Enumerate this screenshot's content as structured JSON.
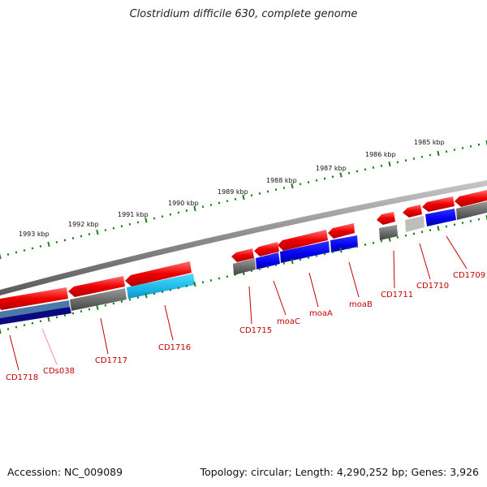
{
  "title": "Clostridium difficile 630, complete genome",
  "footer": {
    "accession": "Accession: NC_009089",
    "summary": "Topology: circular; Length: 4,290,252 bp; Genes: 3,926"
  },
  "colors": {
    "red": "#ee0000",
    "blue": "#0000ee",
    "cyan": "#1cb8e8",
    "navy": "#0a0a80",
    "steel": "#4a78a8",
    "gray": "#6a6a6a",
    "lightgray": "#bdbdbd",
    "backbone": "#8c8c8c",
    "ticks": "#1e7d1e",
    "label": "#c40000",
    "pink": "#f090b8"
  },
  "kbp_labels": [
    {
      "text": "1985 kbp",
      "kbp": 1985
    },
    {
      "text": "1986 kbp",
      "kbp": 1986
    },
    {
      "text": "1987 kbp",
      "kbp": 1987
    },
    {
      "text": "1988 kbp",
      "kbp": 1988
    },
    {
      "text": "1989 kbp",
      "kbp": 1989
    },
    {
      "text": "1990 kbp",
      "kbp": 1990
    },
    {
      "text": "1991 kbp",
      "kbp": 1991
    },
    {
      "text": "1992 kbp",
      "kbp": 1992
    },
    {
      "text": "1993 kbp",
      "kbp": 1993
    }
  ],
  "gene_labels": [
    {
      "text": "CD1709",
      "color": "label"
    },
    {
      "text": "CD1710",
      "color": "label"
    },
    {
      "text": "CD1711",
      "color": "label"
    },
    {
      "text": "moaB",
      "color": "label"
    },
    {
      "text": "moaA",
      "color": "label"
    },
    {
      "text": "moaC",
      "color": "label"
    },
    {
      "text": "CD1715",
      "color": "label"
    },
    {
      "text": "CD1716",
      "color": "label"
    },
    {
      "text": "CD1717",
      "color": "label"
    },
    {
      "text": "CDs038",
      "color": "pink"
    },
    {
      "text": "CD1718",
      "color": "label"
    }
  ]
}
